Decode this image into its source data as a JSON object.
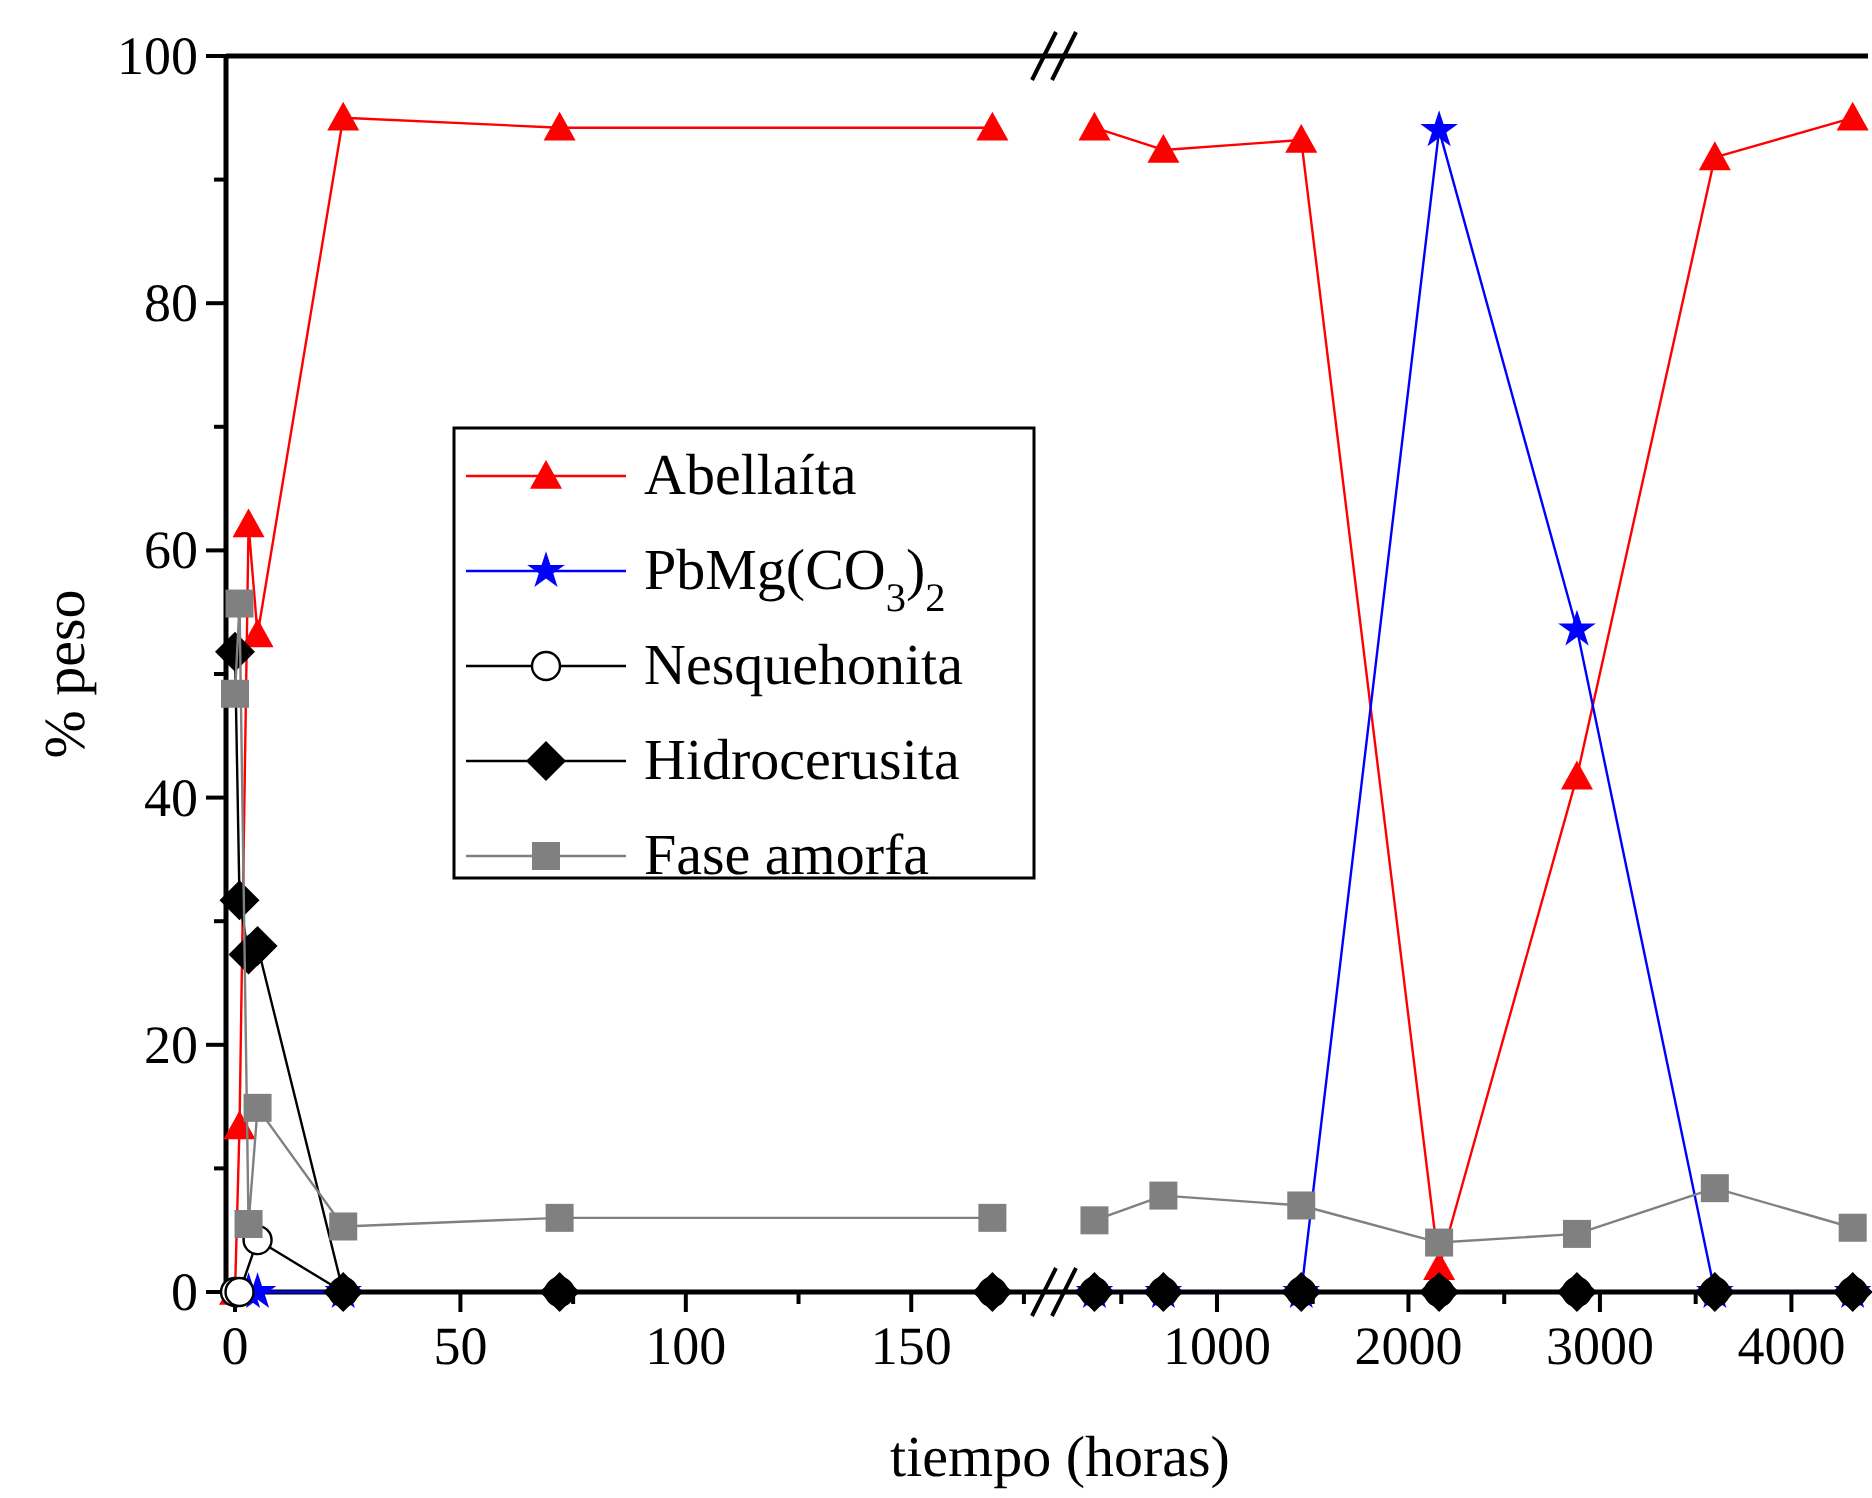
{
  "chart_data": [
    {
      "type": "line",
      "ylabel": "% peso",
      "xlabel": "tiempo (horas)",
      "xlim": [
        -2,
        183
      ],
      "xticks": [
        0,
        {
          "value": 25,
          "label": null
        },
        50,
        {
          "value": 75,
          "label": null
        },
        100,
        {
          "value": 125,
          "label": null
        },
        150,
        {
          "value": 175,
          "label": null
        }
      ],
      "ylim": [
        0,
        100
      ],
      "yticks": [
        0,
        {
          "value": 10,
          "label": null
        },
        20,
        {
          "value": 30,
          "label": null
        },
        40,
        {
          "value": 50,
          "label": null
        },
        60,
        {
          "value": 70,
          "label": null
        },
        80,
        {
          "value": 90,
          "label": null
        },
        100
      ],
      "legend": "center",
      "grid": false,
      "series": [
        {
          "name": "Abellaíta",
          "color": "#ff0000",
          "marker": "triangle",
          "x": [
            0,
            1,
            3,
            5,
            24,
            72,
            168
          ],
          "values": [
            0,
            13.4,
            62.1,
            53.2,
            95,
            94.2,
            94.2
          ]
        },
        {
          "name": "PbMg(CO$_{3}$)$_{2}$",
          "color": "#0000ff",
          "marker": "star",
          "x": [
            3,
            5,
            24
          ],
          "values": [
            0,
            0,
            0
          ]
        },
        {
          "name": "Nesquehonita",
          "color": "#000000",
          "marker": "circle",
          "x": [
            0,
            1,
            5,
            24,
            72,
            168
          ],
          "values": [
            0,
            0,
            4.2,
            0,
            0,
            0
          ]
        },
        {
          "name": "Hidrocerusita",
          "color": "#000000",
          "marker": "diamond",
          "x": [
            0,
            1,
            3,
            5,
            24,
            72,
            168
          ],
          "values": [
            51.8,
            31.7,
            27.3,
            28,
            0,
            0,
            0
          ]
        },
        {
          "name": "Fase amorfa",
          "color": "#808080",
          "marker": "square",
          "x": [
            0,
            1,
            3,
            5,
            24,
            72,
            168
          ],
          "values": [
            48.4,
            55.7,
            5.5,
            14.9,
            5.3,
            6,
            6
          ]
        }
      ]
    },
    {
      "type": "line",
      "xlim": [
        180,
        4400
      ],
      "xticks": [
        {
          "value": 500,
          "label": null
        },
        1000,
        {
          "value": 1500,
          "label": null
        },
        2000,
        {
          "value": 2500,
          "label": null
        },
        3000,
        {
          "value": 3500,
          "label": null
        },
        4000
      ],
      "ylim": [
        0,
        100
      ],
      "tick_labels": "x",
      "grid": false,
      "legend": false,
      "x": [
        360,
        720,
        1440,
        2160,
        2880,
        3600,
        4320
      ],
      "series": [
        {
          "color": "#ff0000",
          "marker": "triangle",
          "values": [
            94.2,
            92.4,
            93.2,
            2,
            41.7,
            91.8,
            95
          ]
        },
        {
          "color": "#0000ff",
          "marker": "star",
          "values": [
            0,
            0,
            0,
            94,
            53.6,
            0,
            0
          ]
        },
        {
          "color": "#000000",
          "marker": "circle",
          "values": [
            0,
            0,
            0,
            0,
            0,
            0,
            0
          ]
        },
        {
          "color": "#000000",
          "marker": "diamond",
          "values": [
            0,
            0,
            0,
            0,
            0,
            0,
            0
          ]
        },
        {
          "color": "#808080",
          "marker": "square",
          "values": [
            5.8,
            7.8,
            7,
            4,
            4.7,
            8.4,
            5.2
          ]
        }
      ]
    }
  ]
}
